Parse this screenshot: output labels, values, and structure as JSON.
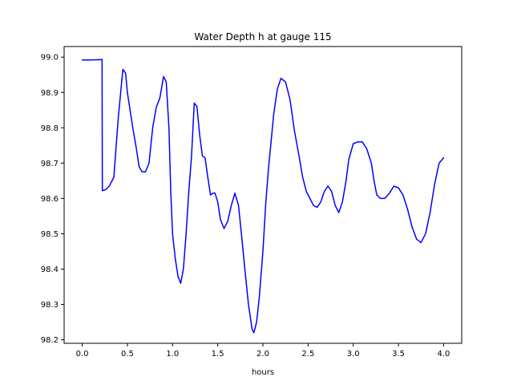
{
  "chart_data": {
    "type": "line",
    "title": "Water Depth h at gauge 115",
    "xlabel": "hours",
    "ylabel": "",
    "xlim": [
      -0.2,
      4.2
    ],
    "ylim": [
      98.19,
      99.03
    ],
    "x_ticks": [
      0.0,
      0.5,
      1.0,
      1.5,
      2.0,
      2.5,
      3.0,
      3.5,
      4.0
    ],
    "x_tick_labels": [
      "0.0",
      "0.5",
      "1.0",
      "1.5",
      "2.0",
      "2.5",
      "3.0",
      "3.5",
      "4.0"
    ],
    "y_ticks": [
      98.2,
      98.3,
      98.4,
      98.5,
      98.6,
      98.7,
      98.8,
      98.9,
      99.0
    ],
    "y_tick_labels": [
      "98.2",
      "98.3",
      "98.4",
      "98.5",
      "98.6",
      "98.7",
      "98.8",
      "98.9",
      "99.0"
    ],
    "grid": false,
    "series": [
      {
        "color": "#0000ff",
        "x": [
          0.0,
          0.1,
          0.22,
          0.223,
          0.26,
          0.3,
          0.35,
          0.4,
          0.45,
          0.48,
          0.5,
          0.53,
          0.56,
          0.6,
          0.63,
          0.66,
          0.7,
          0.74,
          0.78,
          0.82,
          0.86,
          0.9,
          0.93,
          0.96,
          0.98,
          1.0,
          1.03,
          1.06,
          1.09,
          1.12,
          1.15,
          1.18,
          1.21,
          1.24,
          1.27,
          1.3,
          1.33,
          1.36,
          1.39,
          1.42,
          1.45,
          1.47,
          1.5,
          1.53,
          1.57,
          1.61,
          1.65,
          1.69,
          1.73,
          1.77,
          1.8,
          1.84,
          1.88,
          1.9,
          1.93,
          1.96,
          2.0,
          2.03,
          2.06,
          2.09,
          2.12,
          2.16,
          2.2,
          2.25,
          2.3,
          2.35,
          2.4,
          2.44,
          2.48,
          2.52,
          2.56,
          2.6,
          2.64,
          2.68,
          2.72,
          2.76,
          2.8,
          2.84,
          2.88,
          2.92,
          2.95,
          3.0,
          3.05,
          3.1,
          3.15,
          3.2,
          3.23,
          3.26,
          3.3,
          3.35,
          3.4,
          3.45,
          3.5,
          3.55,
          3.6,
          3.65,
          3.7,
          3.75,
          3.8,
          3.85,
          3.9,
          3.95,
          4.0
        ],
        "values": [
          98.992,
          98.992,
          98.993,
          98.622,
          98.625,
          98.635,
          98.66,
          98.83,
          98.965,
          98.955,
          98.9,
          98.85,
          98.8,
          98.74,
          98.69,
          98.676,
          98.675,
          98.7,
          98.8,
          98.858,
          98.885,
          98.945,
          98.93,
          98.8,
          98.62,
          98.5,
          98.43,
          98.38,
          98.36,
          98.4,
          98.5,
          98.62,
          98.72,
          98.87,
          98.86,
          98.78,
          98.72,
          98.715,
          98.66,
          98.61,
          98.615,
          98.615,
          98.59,
          98.54,
          98.515,
          98.535,
          98.58,
          98.615,
          98.58,
          98.48,
          98.4,
          98.3,
          98.23,
          98.22,
          98.25,
          98.32,
          98.45,
          98.58,
          98.68,
          98.76,
          98.84,
          98.91,
          98.94,
          98.93,
          98.88,
          98.79,
          98.72,
          98.66,
          98.62,
          98.6,
          98.58,
          98.575,
          98.59,
          98.62,
          98.635,
          98.62,
          98.58,
          98.56,
          98.59,
          98.65,
          98.71,
          98.755,
          98.76,
          98.76,
          98.74,
          98.7,
          98.65,
          98.61,
          98.6,
          98.6,
          98.615,
          98.635,
          98.63,
          98.61,
          98.57,
          98.52,
          98.485,
          98.475,
          98.5,
          98.56,
          98.64,
          98.7,
          98.715
        ]
      }
    ]
  }
}
